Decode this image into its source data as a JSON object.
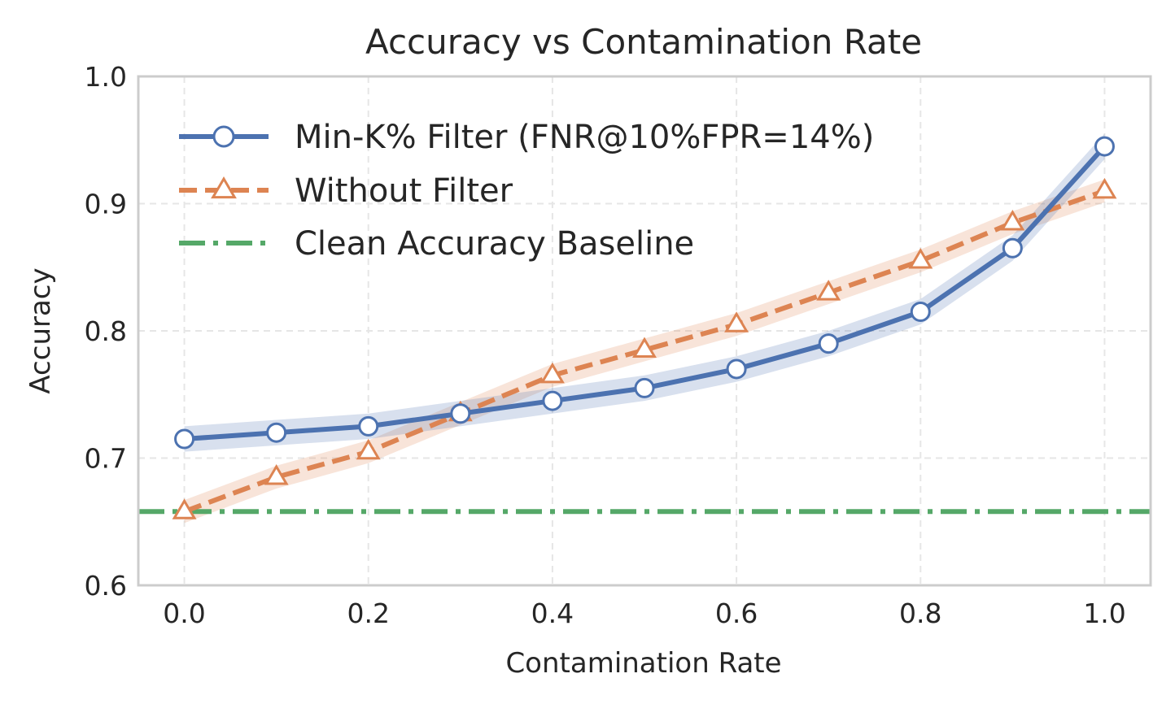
{
  "chart_data": {
    "type": "line",
    "title": "Accuracy vs Contamination Rate",
    "xlabel": "Contamination Rate",
    "ylabel": "Accuracy",
    "xlim": [
      -0.05,
      1.05
    ],
    "ylim": [
      0.6,
      1.0
    ],
    "xticks": [
      0.0,
      0.2,
      0.4,
      0.6,
      0.8,
      1.0
    ],
    "xtick_labels": [
      "0.0",
      "0.2",
      "0.4",
      "0.6",
      "0.8",
      "1.0"
    ],
    "yticks": [
      0.6,
      0.7,
      0.8,
      0.9,
      1.0
    ],
    "ytick_labels": [
      "0.6",
      "0.7",
      "0.8",
      "0.9",
      "1.0"
    ],
    "grid": true,
    "legend_position": "top-left",
    "x": [
      0.0,
      0.1,
      0.2,
      0.3,
      0.4,
      0.5,
      0.6,
      0.7,
      0.8,
      0.9,
      1.0
    ],
    "series": [
      {
        "name": "Min-K% Filter (FNR@10%FPR=14%)",
        "marker": "circle",
        "linestyle": "solid",
        "color": "#4C72B0",
        "values": [
          0.715,
          0.72,
          0.725,
          0.735,
          0.745,
          0.755,
          0.77,
          0.79,
          0.815,
          0.865,
          0.945
        ],
        "band": 0.01
      },
      {
        "name": "Without Filter",
        "marker": "triangle",
        "linestyle": "dashed",
        "color": "#DD8452",
        "values": [
          0.658,
          0.685,
          0.705,
          0.735,
          0.765,
          0.785,
          0.805,
          0.83,
          0.855,
          0.885,
          0.91
        ],
        "band": 0.009
      },
      {
        "name": "Clean Accuracy Baseline",
        "marker": "none",
        "linestyle": "dashdot",
        "color": "#55A868",
        "constant": 0.658
      }
    ]
  }
}
